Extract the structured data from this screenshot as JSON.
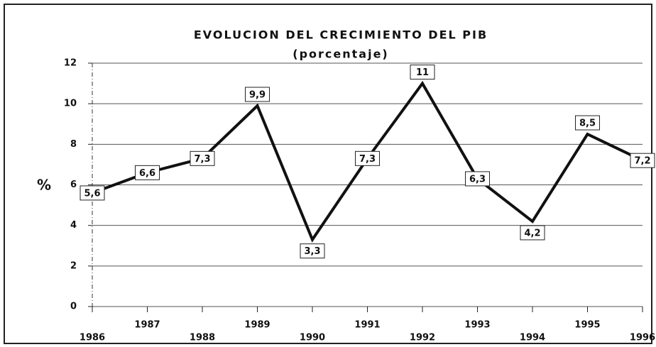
{
  "chart_data": {
    "type": "line",
    "title": "EVOLUCION DEL CRECIMIENTO DEL PIB",
    "subtitle": "(porcentaje)",
    "y_label": "%",
    "categories": [
      "1986",
      "1987",
      "1988",
      "1989",
      "1990",
      "1991",
      "1992",
      "1993",
      "1994",
      "1995",
      "1996"
    ],
    "values": [
      5.6,
      6.6,
      7.3,
      9.9,
      3.3,
      7.3,
      11,
      6.3,
      4.2,
      8.5,
      7.2
    ],
    "value_labels": [
      "5,6",
      "6,6",
      "7,3",
      "9,9",
      "3,3",
      "7,3",
      "11",
      "6,3",
      "4,2",
      "8,5",
      "7,2"
    ],
    "color": "#111111",
    "ylim": [
      0,
      12
    ],
    "yticks": [
      0,
      2,
      4,
      6,
      8,
      10,
      12
    ],
    "grid": true
  }
}
